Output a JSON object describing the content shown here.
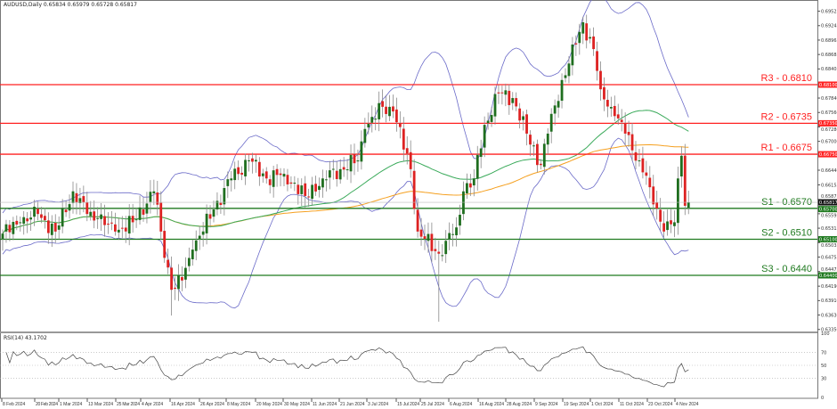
{
  "header": {
    "symbol_line": "AUDUSD,Daily  0.65834 0.65979 0.65728 0.65817"
  },
  "rsi_header": "RSI(14) 43.1702",
  "colors": {
    "bull": "#1f6e1f",
    "bear": "#dd2222",
    "wick": "#888888",
    "bands": "#6a6ac8",
    "ma_green": "#3aaa5a",
    "ma_orange": "#f5a020",
    "resistance": "#ff2222",
    "support": "#1f7a1f"
  },
  "chart_data": {
    "type": "candlestick",
    "symbol": "AUDUSD",
    "timeframe": "Daily",
    "ylim": [
      0.6335,
      0.696
    ],
    "y_ticks": [
      "0.69525",
      "0.69245",
      "0.68965",
      "0.68685",
      "0.68405",
      "0.67840",
      "0.67560",
      "0.67280",
      "0.67000",
      "0.66440",
      "0.66155",
      "0.65875",
      "0.65595",
      "0.65315",
      "0.65035",
      "0.64755",
      "0.64475",
      "0.64190",
      "0.63910",
      "0.63630",
      "0.63350"
    ],
    "x_ticks": [
      "8 Feb 2024",
      "20 Feb 2024",
      "1 Mar 2024",
      "13 Mar 2024",
      "25 Mar 2024",
      "4 Apr 2024",
      "16 Apr 2024",
      "26 Apr 2024",
      "8 May 2024",
      "20 May 2024",
      "30 May 2024",
      "11 Jun 2024",
      "21 Jun 2024",
      "3 Jul 2024",
      "15 Jul 2024",
      "25 Jul 2024",
      "6 Aug 2024",
      "16 Aug 2024",
      "28 Aug 2024",
      "9 Sep 2024",
      "19 Sep 2024",
      "1 Oct 2024",
      "11 Oct 2024",
      "23 Oct 2024",
      "4 Nov 2024"
    ],
    "current_price": "0.65817",
    "close_anchors": [
      [
        0,
        0.6521
      ],
      [
        5,
        0.6543
      ],
      [
        10,
        0.6559
      ],
      [
        15,
        0.6525
      ],
      [
        20,
        0.6603
      ],
      [
        24,
        0.6559
      ],
      [
        27,
        0.6551
      ],
      [
        32,
        0.6525
      ],
      [
        37,
        0.6543
      ],
      [
        43,
        0.6603
      ],
      [
        45,
        0.6525
      ],
      [
        48,
        0.6412
      ],
      [
        51,
        0.643
      ],
      [
        54,
        0.649
      ],
      [
        60,
        0.6568
      ],
      [
        65,
        0.6628
      ],
      [
        70,
        0.6663
      ],
      [
        75,
        0.6628
      ],
      [
        80,
        0.6637
      ],
      [
        86,
        0.6594
      ],
      [
        91,
        0.6628
      ],
      [
        96,
        0.6646
      ],
      [
        101,
        0.6663
      ],
      [
        103,
        0.6724
      ],
      [
        108,
        0.6767
      ],
      [
        111,
        0.6758
      ],
      [
        116,
        0.6646
      ],
      [
        118,
        0.6525
      ],
      [
        124,
        0.6482
      ],
      [
        126,
        0.6507
      ],
      [
        129,
        0.6533
      ],
      [
        131,
        0.6603
      ],
      [
        134,
        0.6628
      ],
      [
        137,
        0.6732
      ],
      [
        141,
        0.6793
      ],
      [
        145,
        0.6784
      ],
      [
        149,
        0.6715
      ],
      [
        153,
        0.6654
      ],
      [
        155,
        0.6715
      ],
      [
        159,
        0.6819
      ],
      [
        163,
        0.6888
      ],
      [
        165,
        0.6931
      ],
      [
        168,
        0.6879
      ],
      [
        170,
        0.6801
      ],
      [
        174,
        0.6749
      ],
      [
        177,
        0.6715
      ],
      [
        181,
        0.6663
      ],
      [
        184,
        0.6611
      ],
      [
        188,
        0.6525
      ],
      [
        191,
        0.6543
      ],
      [
        192,
        0.6628
      ],
      [
        193,
        0.6672
      ],
      [
        194,
        0.6575
      ],
      [
        195,
        0.65817
      ]
    ],
    "indicators": [
      "Bollinger Bands (20,2)",
      "Moving Average (50)",
      "Moving Average (100)"
    ],
    "levels": [
      {
        "label": "R3 - 0.6810",
        "price": 0.681,
        "tag": "0.68100",
        "kind": "resistance"
      },
      {
        "label": "R2 - 0.6735",
        "price": 0.6735,
        "tag": "0.67350",
        "kind": "resistance"
      },
      {
        "label": "R1 - 0.6675",
        "price": 0.6675,
        "tag": "0.66750",
        "kind": "resistance"
      },
      {
        "label": "S1 - 0.6570",
        "price": 0.657,
        "tag": "0.65700",
        "kind": "support"
      },
      {
        "label": "S2 - 0.6510",
        "price": 0.651,
        "tag": "0.65100",
        "kind": "support"
      },
      {
        "label": "S3 - 0.6440",
        "price": 0.644,
        "tag": "0.64400",
        "kind": "support"
      }
    ],
    "rsi": {
      "period": 14,
      "value": "43.1702",
      "ticks": [
        "100",
        "70",
        "50",
        "30",
        "0"
      ],
      "levels": [
        70,
        50,
        30
      ]
    }
  }
}
